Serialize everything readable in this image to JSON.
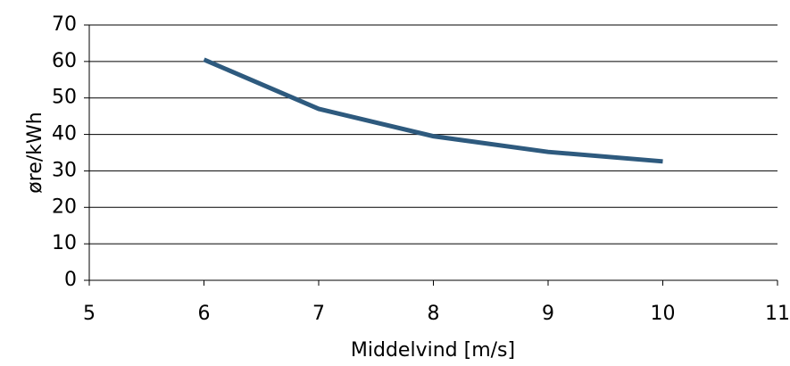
{
  "chart_data": {
    "type": "line",
    "x_label": "Middelvind [m/s]",
    "y_label": "øre/kWh",
    "x": [
      6,
      7,
      8,
      9,
      10
    ],
    "series": [
      {
        "color": "#2e5a7e",
        "values": [
          60.5,
          47,
          39.5,
          35.2,
          32.6
        ]
      }
    ],
    "xlim": [
      5,
      11
    ],
    "xticks": [
      5,
      6,
      7,
      8,
      9,
      10,
      11
    ],
    "ylim": [
      0,
      70
    ],
    "yticks": [
      0,
      10,
      20,
      30,
      40,
      50,
      60,
      70
    ],
    "grid": true
  }
}
